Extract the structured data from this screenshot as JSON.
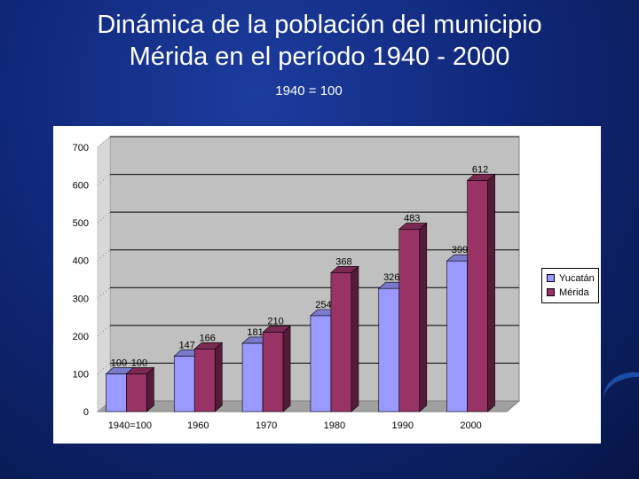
{
  "title_line1": "Dinámica de la población del municipio",
  "title_line2": "Mérida en el período 1940 - 2000",
  "subtitle": "1940 = 100",
  "colors": {
    "yucatan": "#9999ff",
    "merida": "#993366",
    "wall": "#c0c0c0",
    "background": "#10287a"
  },
  "chart_data": {
    "type": "bar",
    "title": "Dinámica de la población del municipio Mérida en el período 1940 - 2000",
    "subtitle": "1940 = 100",
    "categories": [
      "1940=100",
      "1960",
      "1970",
      "1980",
      "1990",
      "2000"
    ],
    "series": [
      {
        "name": "Yucatán",
        "values": [
          100,
          147,
          181,
          254,
          326,
          399
        ]
      },
      {
        "name": "Mérida",
        "values": [
          100,
          166,
          210,
          368,
          483,
          612
        ]
      }
    ],
    "data_labels": [
      [
        "100",
        "147",
        "181",
        "254",
        "326",
        "399"
      ],
      [
        "100",
        "166",
        "210",
        "368",
        "483",
        "612"
      ]
    ],
    "yticks": [
      0,
      100,
      200,
      300,
      400,
      500,
      600,
      700
    ],
    "ylim": [
      0,
      700
    ],
    "xlabel": "",
    "ylabel": "",
    "legend_position": "right"
  }
}
